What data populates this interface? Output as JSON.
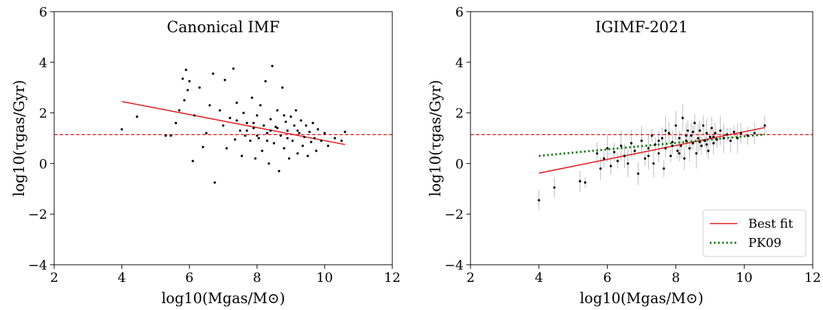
{
  "chart_data": [
    {
      "type": "scatter",
      "title": "Canonical IMF",
      "xlabel": "log10(Mgas/M⊙)",
      "ylabel": "log10(τgas/Gyr)",
      "xlim": [
        2,
        12
      ],
      "ylim": [
        -4,
        6
      ],
      "xticks": [
        "2",
        "4",
        "6",
        "8",
        "10",
        "12"
      ],
      "yticks": [
        "−4",
        "−2",
        "0",
        "2",
        "4",
        "6"
      ],
      "reference_line": {
        "y": 1.14,
        "color": "#e41a1c",
        "style": "dashed"
      },
      "fit_line": {
        "x": [
          4.0,
          10.6
        ],
        "y": [
          2.45,
          0.75
        ],
        "color": "#e41a1c"
      },
      "points": [
        [
          4.0,
          1.35
        ],
        [
          4.45,
          1.85
        ],
        [
          5.3,
          1.1
        ],
        [
          5.45,
          1.1
        ],
        [
          5.6,
          1.6
        ],
        [
          5.7,
          2.1
        ],
        [
          5.8,
          3.35
        ],
        [
          5.85,
          2.5
        ],
        [
          5.9,
          3.7
        ],
        [
          5.95,
          2.9
        ],
        [
          6.0,
          3.25
        ],
        [
          6.1,
          0.1
        ],
        [
          6.15,
          1.9
        ],
        [
          6.3,
          3.0
        ],
        [
          6.4,
          0.65
        ],
        [
          6.5,
          1.2
        ],
        [
          6.6,
          2.3
        ],
        [
          6.7,
          3.55
        ],
        [
          6.75,
          -0.75
        ],
        [
          6.9,
          2.1
        ],
        [
          7.0,
          1.5
        ],
        [
          7.05,
          3.3
        ],
        [
          7.1,
          0.6
        ],
        [
          7.2,
          1.8
        ],
        [
          7.3,
          3.75
        ],
        [
          7.35,
          0.95
        ],
        [
          7.4,
          2.4
        ],
        [
          7.5,
          1.3
        ],
        [
          7.55,
          0.3
        ],
        [
          7.6,
          2.0
        ],
        [
          7.65,
          1.1
        ],
        [
          7.7,
          1.6
        ],
        [
          7.8,
          0.9
        ],
        [
          7.85,
          2.6
        ],
        [
          7.9,
          1.4
        ],
        [
          7.95,
          0.2
        ],
        [
          8.0,
          1.9
        ],
        [
          8.05,
          1.0
        ],
        [
          8.1,
          2.3
        ],
        [
          8.15,
          0.5
        ],
        [
          8.2,
          1.5
        ],
        [
          8.25,
          3.25
        ],
        [
          8.3,
          1.2
        ],
        [
          8.35,
          0.0
        ],
        [
          8.4,
          1.75
        ],
        [
          8.45,
          3.85
        ],
        [
          8.5,
          0.8
        ],
        [
          8.55,
          1.45
        ],
        [
          8.6,
          2.1
        ],
        [
          8.65,
          -0.3
        ],
        [
          8.7,
          1.1
        ],
        [
          8.75,
          3.0
        ],
        [
          8.8,
          0.6
        ],
        [
          8.85,
          1.65
        ],
        [
          8.9,
          1.3
        ],
        [
          8.95,
          0.2
        ],
        [
          9.0,
          1.85
        ],
        [
          9.05,
          0.9
        ],
        [
          9.1,
          1.5
        ],
        [
          9.15,
          2.1
        ],
        [
          9.2,
          0.4
        ],
        [
          9.25,
          1.2
        ],
        [
          9.3,
          1.7
        ],
        [
          9.35,
          0.7
        ],
        [
          9.4,
          1.05
        ],
        [
          9.45,
          1.5
        ],
        [
          9.5,
          0.3
        ],
        [
          9.55,
          1.25
        ],
        [
          9.6,
          0.85
        ],
        [
          9.65,
          1.6
        ],
        [
          9.7,
          1.0
        ],
        [
          9.75,
          0.5
        ],
        [
          9.8,
          1.35
        ],
        [
          9.9,
          0.9
        ],
        [
          10.0,
          1.2
        ],
        [
          10.1,
          0.7
        ],
        [
          10.3,
          1.0
        ],
        [
          10.5,
          0.9
        ],
        [
          10.6,
          1.25
        ],
        [
          7.7,
          1.3
        ],
        [
          8.0,
          1.1
        ],
        [
          8.3,
          0.9
        ],
        [
          8.6,
          1.4
        ],
        [
          8.9,
          1.0
        ],
        [
          7.4,
          1.7
        ],
        [
          7.9,
          1.6
        ],
        [
          8.4,
          1.3
        ],
        [
          8.8,
          1.9
        ],
        [
          9.2,
          1.3
        ]
      ]
    },
    {
      "type": "scatter",
      "title": "IGIMF-2021",
      "xlabel": "log10(Mgas/M⊙)",
      "ylabel": "log10(τgas/Gyr)",
      "xlim": [
        2,
        12
      ],
      "ylim": [
        -4,
        6
      ],
      "xticks": [
        "2",
        "4",
        "6",
        "8",
        "10",
        "12"
      ],
      "yticks": [
        "−4",
        "−2",
        "0",
        "2",
        "4",
        "6"
      ],
      "reference_line": {
        "y": 1.14,
        "color": "#e41a1c",
        "style": "dashed"
      },
      "series": [
        {
          "name": "Best fit",
          "x": [
            4.0,
            10.6
          ],
          "y": [
            -0.38,
            1.42
          ],
          "color": "#e41a1c",
          "style": "solid"
        },
        {
          "name": "PK09",
          "x": [
            4.0,
            10.6
          ],
          "y": [
            0.3,
            1.15
          ],
          "color": "#1a7a1a",
          "style": "dotted"
        }
      ],
      "legend": {
        "position": "bottom-right",
        "entries": [
          "Best fit",
          "PK09"
        ]
      },
      "points": [
        [
          4.0,
          -1.45
        ],
        [
          4.45,
          -0.95
        ],
        [
          5.2,
          -0.7
        ],
        [
          5.35,
          -0.75
        ],
        [
          5.7,
          0.4
        ],
        [
          5.8,
          -0.2
        ],
        [
          5.9,
          0.2
        ],
        [
          6.0,
          0.6
        ],
        [
          6.1,
          -0.1
        ],
        [
          6.2,
          0.45
        ],
        [
          6.3,
          0.1
        ],
        [
          6.4,
          0.7
        ],
        [
          6.5,
          0.3
        ],
        [
          6.6,
          0.0
        ],
        [
          6.7,
          0.8
        ],
        [
          6.8,
          0.5
        ],
        [
          6.9,
          -0.4
        ],
        [
          7.0,
          0.9
        ],
        [
          7.1,
          0.2
        ],
        [
          7.2,
          0.6
        ],
        [
          7.3,
          1.1
        ],
        [
          7.35,
          0.0
        ],
        [
          7.4,
          0.75
        ],
        [
          7.5,
          0.4
        ],
        [
          7.6,
          1.0
        ],
        [
          7.65,
          -0.2
        ],
        [
          7.7,
          0.6
        ],
        [
          7.8,
          1.2
        ],
        [
          7.85,
          0.3
        ],
        [
          7.9,
          0.85
        ],
        [
          8.0,
          1.5
        ],
        [
          8.05,
          0.5
        ],
        [
          8.1,
          1.0
        ],
        [
          8.15,
          0.7
        ],
        [
          8.2,
          1.8
        ],
        [
          8.25,
          0.2
        ],
        [
          8.3,
          0.9
        ],
        [
          8.35,
          1.3
        ],
        [
          8.4,
          0.6
        ],
        [
          8.45,
          1.1
        ],
        [
          8.5,
          0.8
        ],
        [
          8.55,
          1.6
        ],
        [
          8.6,
          0.4
        ],
        [
          8.65,
          1.0
        ],
        [
          8.7,
          1.3
        ],
        [
          8.75,
          0.7
        ],
        [
          8.8,
          1.5
        ],
        [
          8.85,
          0.9
        ],
        [
          8.9,
          1.2
        ],
        [
          8.95,
          0.5
        ],
        [
          9.0,
          1.05
        ],
        [
          9.05,
          1.4
        ],
        [
          9.1,
          0.8
        ],
        [
          9.15,
          1.2
        ],
        [
          9.2,
          0.95
        ],
        [
          9.3,
          1.3
        ],
        [
          9.4,
          1.0
        ],
        [
          9.5,
          1.15
        ],
        [
          9.6,
          0.9
        ],
        [
          9.7,
          1.25
        ],
        [
          9.8,
          1.0
        ],
        [
          9.9,
          1.2
        ],
        [
          10.1,
          1.1
        ],
        [
          10.3,
          1.2
        ],
        [
          10.6,
          1.5
        ],
        [
          7.5,
          0.9
        ],
        [
          7.9,
          0.7
        ],
        [
          8.3,
          1.1
        ],
        [
          8.7,
          0.85
        ],
        [
          9.1,
          1.05
        ],
        [
          7.2,
          0.3
        ],
        [
          7.7,
          1.3
        ],
        [
          8.1,
          0.4
        ],
        [
          8.5,
          1.25
        ],
        [
          8.9,
          0.75
        ]
      ],
      "error_bars": {
        "color": "#bbbbbb",
        "half_width": 0.5
      }
    }
  ]
}
